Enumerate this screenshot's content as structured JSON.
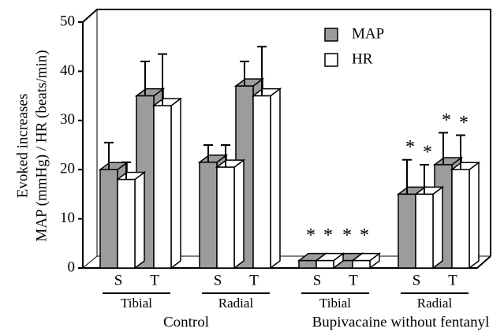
{
  "chart_data": {
    "type": "bar3d",
    "ylabel": [
      "Evoked increases",
      "MAP (mmHg) / HR (beats/min)"
    ],
    "groups": [
      {
        "name": "Control",
        "subgroups": [
          {
            "name": "Tibial",
            "categories": [
              "S",
              "T"
            ]
          },
          {
            "name": "Radial",
            "categories": [
              "S",
              "T"
            ]
          }
        ]
      },
      {
        "name": "Bupivacaine without fentanyl",
        "subgroups": [
          {
            "name": "Tibial",
            "categories": [
              "S",
              "T"
            ]
          },
          {
            "name": "Radial",
            "categories": [
              "S",
              "T"
            ]
          }
        ]
      }
    ],
    "series": [
      {
        "name": "MAP",
        "color": "#9c9c9c",
        "values": [
          20,
          35,
          21.5,
          37,
          1.5,
          1.5,
          15,
          21
        ],
        "errors": [
          5.5,
          7,
          3.5,
          5,
          null,
          null,
          7,
          6.5
        ],
        "markers": [
          null,
          null,
          null,
          null,
          "*",
          "*",
          "*",
          "*"
        ]
      },
      {
        "name": "HR",
        "color": "#ffffff",
        "values": [
          18,
          33,
          20.5,
          35,
          1.5,
          1.5,
          15,
          20
        ],
        "errors": [
          3.5,
          10.5,
          4.5,
          10,
          null,
          null,
          6,
          7
        ],
        "markers": [
          null,
          null,
          null,
          null,
          "*",
          "*",
          "*",
          "*"
        ]
      }
    ],
    "ylim": [
      0,
      50
    ],
    "yticks": [
      0,
      10,
      20,
      30,
      40,
      50
    ],
    "legend": "upper right"
  }
}
